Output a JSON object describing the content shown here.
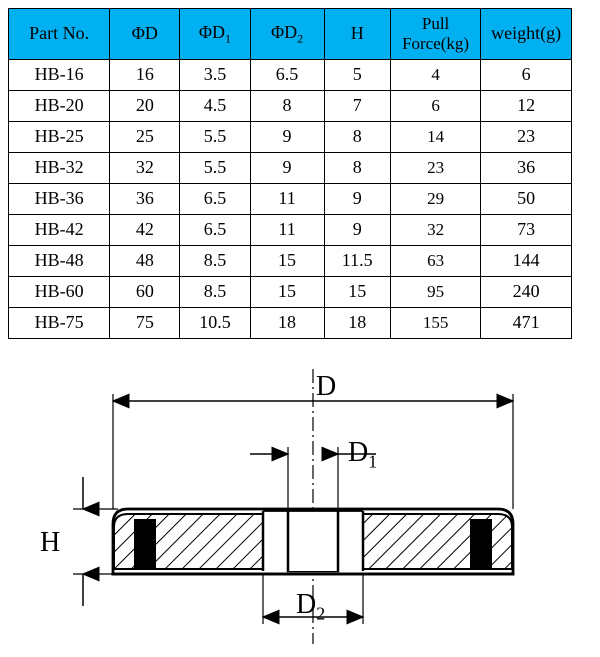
{
  "table": {
    "columns": [
      {
        "label_html": "Part No."
      },
      {
        "label_html": "ΦD"
      },
      {
        "label_html": "ΦD<span class='sub'>1</span>"
      },
      {
        "label_html": "ΦD<span class='sub'>2</span>"
      },
      {
        "label_html": "H"
      },
      {
        "label_html": "Pull<br>Force(kg)"
      },
      {
        "label_html": "weight(g)"
      }
    ],
    "rows": [
      [
        "HB-16",
        "16",
        "3.5",
        "6.5",
        "5",
        "4",
        "6"
      ],
      [
        "HB-20",
        "20",
        "4.5",
        "8",
        "7",
        "6",
        "12"
      ],
      [
        "HB-25",
        "25",
        "5.5",
        "9",
        "8",
        "14",
        "23"
      ],
      [
        "HB-32",
        "32",
        "5.5",
        "9",
        "8",
        "23",
        "36"
      ],
      [
        "HB-36",
        "36",
        "6.5",
        "11",
        "9",
        "29",
        "50"
      ],
      [
        "HB-42",
        "42",
        "6.5",
        "11",
        "9",
        "32",
        "73"
      ],
      [
        "HB-48",
        "48",
        "8.5",
        "15",
        "11.5",
        "63",
        "144"
      ],
      [
        "HB-60",
        "60",
        "8.5",
        "15",
        "15",
        "95",
        "240"
      ],
      [
        "HB-75",
        "75",
        "10.5",
        "18",
        "18",
        "155",
        "471"
      ]
    ],
    "header_bg": "#00b0f0",
    "border_color": "#000000",
    "font_family": "Times New Roman",
    "header_fontsize": 18,
    "cell_fontsize": 18
  },
  "diagram": {
    "labels": {
      "D": "D",
      "D1_html": "D<span class='sub'>1</span>",
      "D2_html": "D<span class='sub'>2</span>",
      "H": "H"
    },
    "colors": {
      "outline": "#000000",
      "hatch": "#000000",
      "magnet_fill": "#000000",
      "background": "#ffffff"
    },
    "stroke_width": 2.5,
    "hatch_spacing": 12,
    "label_fontsize": 28
  }
}
